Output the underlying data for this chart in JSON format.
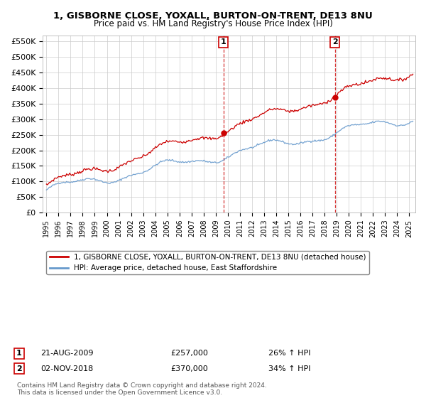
{
  "title": "1, GISBORNE CLOSE, YOXALL, BURTON-ON-TRENT, DE13 8NU",
  "subtitle": "Price paid vs. HM Land Registry's House Price Index (HPI)",
  "ylim": [
    0,
    570000
  ],
  "yticks": [
    0,
    50000,
    100000,
    150000,
    200000,
    250000,
    300000,
    350000,
    400000,
    450000,
    500000,
    550000
  ],
  "ytick_labels": [
    "£0",
    "£50K",
    "£100K",
    "£150K",
    "£200K",
    "£250K",
    "£300K",
    "£350K",
    "£400K",
    "£450K",
    "£500K",
    "£550K"
  ],
  "sale1_value": 257000,
  "sale1_x": 2009.64,
  "sale1_text": "21-AUG-2009",
  "sale1_pct": "26% ↑ HPI",
  "sale2_value": 370000,
  "sale2_x": 2018.84,
  "sale2_text": "02-NOV-2018",
  "sale2_pct": "34% ↑ HPI",
  "legend_line1": "1, GISBORNE CLOSE, YOXALL, BURTON-ON-TRENT, DE13 8NU (detached house)",
  "legend_line2": "HPI: Average price, detached house, East Staffordshire",
  "footnote": "Contains HM Land Registry data © Crown copyright and database right 2024.\nThis data is licensed under the Open Government Licence v3.0.",
  "line_color_red": "#cc0000",
  "line_color_blue": "#6699cc",
  "vline_color": "#cc0000",
  "background_color": "#ffffff",
  "grid_color": "#cccccc",
  "xmin": 1994.7,
  "xmax": 2025.5
}
